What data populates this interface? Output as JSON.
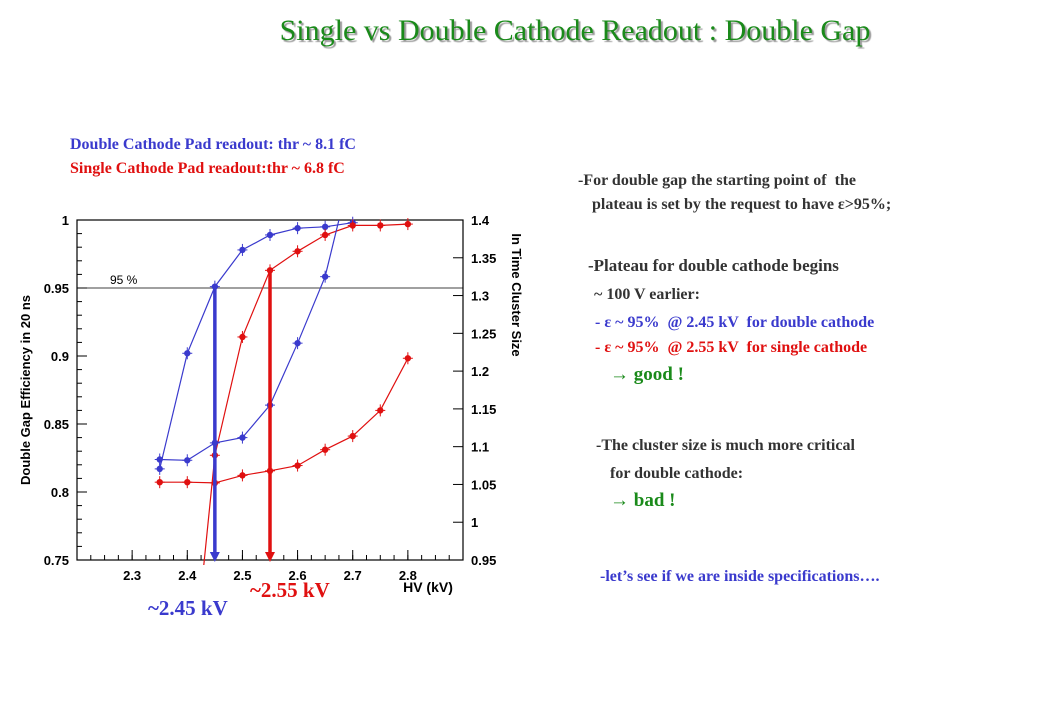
{
  "title": "Single vs Double Cathode Readout : Double Gap",
  "legend": {
    "double": "Double Cathode Pad readout: thr  ~ 8.1 fC",
    "single": "Single Cathode Pad readout:thr ~ 6.8 fC"
  },
  "notes": {
    "n1a": "-For double gap the starting point of  the",
    "n1b": "plateau is set by the request to have ε>95%;",
    "n2a": "-Plateau for double cathode begins",
    "n2b": "~ 100 V earlier:",
    "n2c": "- ε ~ 95%  @ 2.45 kV  for double cathode",
    "n2d": "- ε ~ 95%  @ 2.55 kV  for single cathode",
    "n2e": "→ good !",
    "n3a": "-The cluster size is much more critical",
    "n3b": "for double cathode:",
    "n3c": "→ bad !",
    "n4": "-let’s see if we are inside specifications…."
  },
  "markers": {
    "double_kv": "~2.45 kV",
    "single_kv": "~2.55 kV",
    "pct95": "95 %"
  },
  "colors": {
    "double": "#3a3acd",
    "single": "#e01010",
    "title": "#1a8a1a"
  },
  "chart_data": {
    "type": "line",
    "xlabel": "HV (kV)",
    "ylabel_left": "Double Gap Efficiency in 20 ns",
    "ylabel_right": "In Time Cluster Size",
    "xlim": [
      2.2,
      2.9
    ],
    "ylim_left": [
      0.75,
      1.0
    ],
    "ylim_right": [
      0.95,
      1.4
    ],
    "x_ticks": [
      "2.3",
      "2.4",
      "2.5",
      "2.6",
      "2.7",
      "2.8"
    ],
    "y_left_ticks": [
      "0.75",
      "0.8",
      "0.85",
      "0.9",
      "0.95",
      "1"
    ],
    "y_right_ticks": [
      "0.95",
      "1",
      "1.05",
      "1.1",
      "1.15",
      "1.2",
      "1.25",
      "1.3",
      "1.35",
      "1.4"
    ],
    "reference_line": 0.95,
    "series": [
      {
        "name": "Double Cathode Pad readout",
        "axis": "left",
        "color": "#3a3acd",
        "x": [
          2.35,
          2.4,
          2.45,
          2.5,
          2.55,
          2.6,
          2.65,
          2.7
        ],
        "y": [
          0.817,
          0.902,
          0.951,
          0.978,
          0.989,
          0.994,
          0.995,
          0.998
        ]
      },
      {
        "name": "Single Cathode Pad readout",
        "axis": "left",
        "color": "#e01010",
        "x": [
          2.45,
          2.5,
          2.55,
          2.6,
          2.65,
          2.7,
          2.75,
          2.8
        ],
        "y": [
          0.827,
          0.914,
          0.963,
          0.977,
          0.989,
          0.996,
          0.996,
          0.997
        ]
      },
      {
        "name": "Double Cathode Pad readout",
        "axis": "right",
        "color": "#3a3acd",
        "x": [
          2.35,
          2.4,
          2.45,
          2.5,
          2.55,
          2.6,
          2.65
        ],
        "y": [
          1.083,
          1.082,
          1.105,
          1.112,
          1.155,
          1.237,
          1.325
        ]
      },
      {
        "name": "Single Cathode Pad readout",
        "axis": "right",
        "color": "#e01010",
        "x": [
          2.35,
          2.4,
          2.45,
          2.5,
          2.55,
          2.6,
          2.65,
          2.7,
          2.75,
          2.8
        ],
        "y": [
          1.053,
          1.053,
          1.052,
          1.062,
          1.068,
          1.075,
          1.096,
          1.114,
          1.148,
          1.217
        ]
      }
    ],
    "vertical_markers": [
      {
        "x": 2.45,
        "color": "#3a3acd"
      },
      {
        "x": 2.55,
        "color": "#e01010"
      }
    ]
  }
}
